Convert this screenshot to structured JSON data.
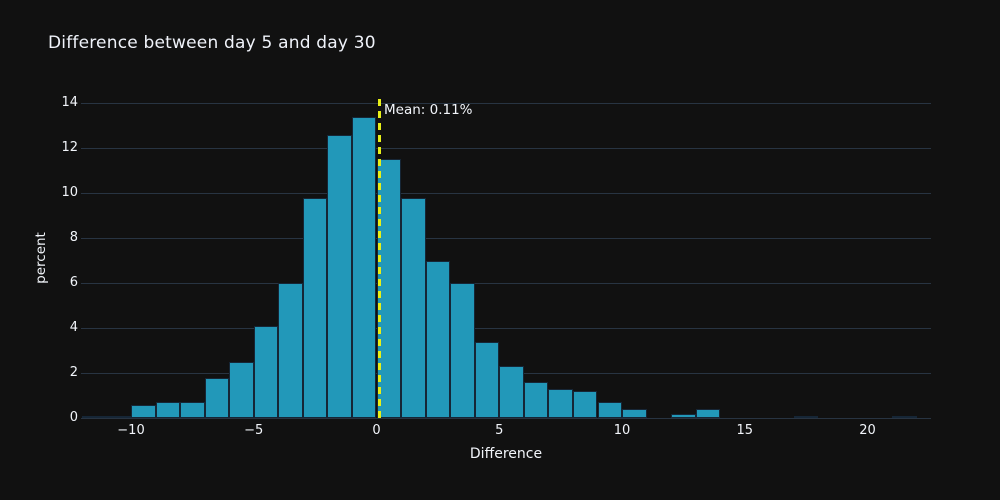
{
  "title": "Difference between day 5 and day 30",
  "annotation": {
    "text": "Mean: 0.11%"
  },
  "colors": {
    "background": "#111111",
    "bar_fill": "#2298b9",
    "bar_border": "#162636",
    "grid": "#283442",
    "text": "#f2f5fa",
    "mean_line": "#e8f018"
  },
  "chart_data": {
    "type": "bar",
    "subtype": "histogram",
    "title": "Difference between day 5 and day 30",
    "xlabel": "Difference",
    "ylabel": "percent",
    "bin_width": 1,
    "bin_left_edges": [
      -12,
      -11,
      -10,
      -9,
      -8,
      -7,
      -6,
      -5,
      -4,
      -3,
      -2,
      -1,
      0,
      1,
      2,
      3,
      4,
      5,
      6,
      7,
      8,
      9,
      10,
      11,
      12,
      13,
      14,
      15,
      16,
      17,
      18,
      19,
      20,
      21
    ],
    "values": [
      0.1,
      0.1,
      0.6,
      0.7,
      0.7,
      1.8,
      2.5,
      4.1,
      6.0,
      9.8,
      12.6,
      13.4,
      11.5,
      9.8,
      7.0,
      6.0,
      3.4,
      2.3,
      1.6,
      1.3,
      1.2,
      0.7,
      0.4,
      0,
      0.2,
      0.4,
      0,
      0,
      0,
      0.1,
      0,
      0,
      0,
      0.1
    ],
    "mean": 0.11,
    "mean_label": "Mean: 0.11%",
    "xlim": [
      -12.1,
      22.6
    ],
    "ylim": [
      0,
      14.4
    ],
    "xticks": [
      {
        "v": -10,
        "label": "−10"
      },
      {
        "v": -5,
        "label": "−5"
      },
      {
        "v": 0,
        "label": "0"
      },
      {
        "v": 5,
        "label": "5"
      },
      {
        "v": 10,
        "label": "10"
      },
      {
        "v": 15,
        "label": "15"
      },
      {
        "v": 20,
        "label": "20"
      }
    ],
    "yticks": [
      0,
      2,
      4,
      6,
      8,
      10,
      12,
      14
    ],
    "grid": "horizontal",
    "legend": false,
    "theme": "dark"
  }
}
